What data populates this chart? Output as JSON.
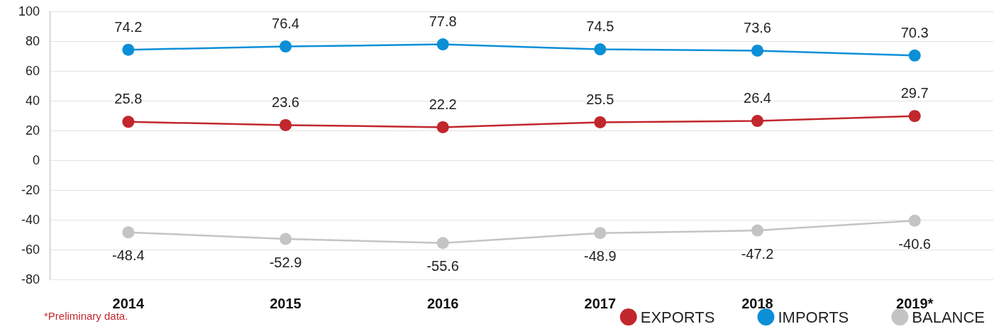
{
  "chart_data": {
    "type": "line",
    "categories": [
      "2014",
      "2015",
      "2016",
      "2017",
      "2018",
      "2019*"
    ],
    "series": [
      {
        "name": "EXPORTS",
        "color": "#c1272d",
        "values": [
          25.8,
          23.6,
          22.2,
          25.5,
          26.4,
          29.7
        ]
      },
      {
        "name": "IMPORTS",
        "color": "#0c8fd7",
        "values": [
          74.2,
          76.4,
          77.8,
          74.5,
          73.6,
          70.3
        ]
      },
      {
        "name": "BALANCE",
        "color": "#c4c4c4",
        "values": [
          -48.4,
          -52.9,
          -55.6,
          -48.9,
          -47.2,
          -40.6
        ]
      }
    ],
    "ylim": [
      -80,
      100
    ],
    "yticks": [
      -80,
      -60,
      -40,
      -20,
      0,
      20,
      40,
      60,
      80,
      100
    ],
    "grid": "y",
    "legend": "bottom right",
    "marker": "circle",
    "line_style": "solid",
    "data_labels": true,
    "annotations": [
      "*Preliminary data."
    ]
  }
}
